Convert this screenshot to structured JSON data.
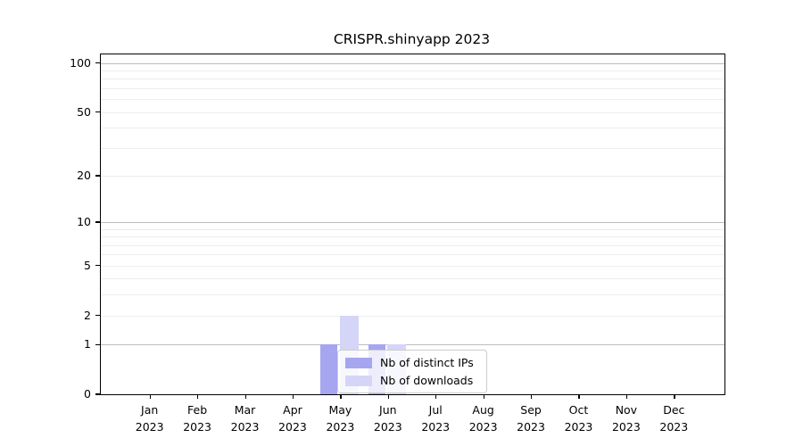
{
  "chart_data": {
    "type": "bar",
    "title": "CRISPR.shinyapp 2023",
    "x": [
      {
        "label": "Jan",
        "sublabel": "2023"
      },
      {
        "label": "Feb",
        "sublabel": "2023"
      },
      {
        "label": "Mar",
        "sublabel": "2023"
      },
      {
        "label": "Apr",
        "sublabel": "2023"
      },
      {
        "label": "May",
        "sublabel": "2023"
      },
      {
        "label": "Jun",
        "sublabel": "2023"
      },
      {
        "label": "Jul",
        "sublabel": "2023"
      },
      {
        "label": "Aug",
        "sublabel": "2023"
      },
      {
        "label": "Sep",
        "sublabel": "2023"
      },
      {
        "label": "Oct",
        "sublabel": "2023"
      },
      {
        "label": "Nov",
        "sublabel": "2023"
      },
      {
        "label": "Dec",
        "sublabel": "2023"
      }
    ],
    "series": [
      {
        "name": "Nb of distinct IPs",
        "key": "distinct-ips",
        "color": "#a5a5f0",
        "values": [
          0,
          0,
          0,
          0,
          1,
          1,
          0,
          0,
          0,
          0,
          0,
          0
        ]
      },
      {
        "name": "Nb of downloads",
        "key": "downloads",
        "color": "#d5d5f7",
        "values": [
          0,
          0,
          0,
          0,
          2,
          1,
          0,
          0,
          0,
          0,
          0,
          0
        ]
      }
    ],
    "y_axis": {
      "scale": "log1p",
      "tick_values": [
        0,
        1,
        2,
        5,
        10,
        20,
        50,
        100
      ],
      "major_gridlines": [
        1,
        10,
        100
      ],
      "minor_gridlines": [
        2,
        3,
        4,
        5,
        6,
        7,
        8,
        9,
        20,
        30,
        40,
        50,
        60,
        70,
        80,
        90
      ],
      "ylim": [
        0,
        113
      ]
    },
    "legend": {
      "position": "lower center",
      "entries": [
        "Nb of distinct IPs",
        "Nb of downloads"
      ]
    },
    "grid": true
  },
  "style": {
    "major_grid_color": "#bdbdbd",
    "minor_grid_color": "#ededed",
    "spine_color": "#000000",
    "text_color": "#000000",
    "legend_border_color": "#cccccc",
    "background": "#ffffff"
  }
}
